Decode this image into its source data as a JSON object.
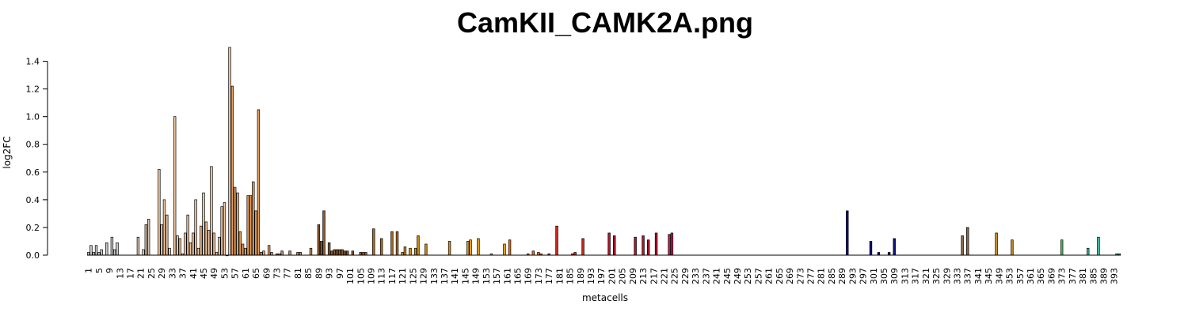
{
  "chart_data": {
    "type": "bar",
    "title": "CamKII_CAMK2A.png",
    "xlabel": "metacells",
    "ylabel": "log2FC",
    "n_bars": 395,
    "ylim": [
      0,
      1.5
    ],
    "y_ticks": [
      "0.0",
      "0.2",
      "0.4",
      "0.6",
      "0.8",
      "1.0",
      "1.2",
      "1.4"
    ],
    "x_tick_labels": [
      "1",
      "5",
      "9",
      "13",
      "17",
      "21",
      "25",
      "29",
      "33",
      "37",
      "41",
      "45",
      "49",
      "53",
      "57",
      "61",
      "65",
      "69",
      "73",
      "77",
      "81",
      "85",
      "89",
      "93",
      "97",
      "101",
      "105",
      "109",
      "113",
      "117",
      "121",
      "125",
      "129",
      "133",
      "137",
      "141",
      "145",
      "149",
      "153",
      "157",
      "161",
      "165",
      "169",
      "173",
      "177",
      "181",
      "185",
      "189",
      "193",
      "197",
      "201",
      "205",
      "209",
      "213",
      "217",
      "221",
      "225",
      "229",
      "233",
      "237",
      "241",
      "245",
      "249",
      "253",
      "257",
      "261",
      "265",
      "269",
      "273",
      "277",
      "281",
      "285",
      "289",
      "293",
      "297",
      "301",
      "305",
      "309",
      "313",
      "317",
      "321",
      "325",
      "329",
      "333",
      "337",
      "341",
      "345",
      "349",
      "353",
      "357",
      "361",
      "365",
      "369",
      "373",
      "377",
      "381",
      "385",
      "389",
      "393"
    ],
    "values": {
      "1": 0.02,
      "2": 0.07,
      "3": 0.02,
      "4": 0.07,
      "5": 0.02,
      "6": 0.04,
      "8": 0.09,
      "10": 0.13,
      "11": 0.04,
      "12": 0.09,
      "20": 0.13,
      "22": 0.04,
      "23": 0.22,
      "24": 0.26,
      "28": 0.62,
      "29": 0.22,
      "30": 0.4,
      "31": 0.29,
      "32": 0.05,
      "34": 1.0,
      "35": 0.14,
      "36": 0.12,
      "37": 0.01,
      "38": 0.16,
      "39": 0.29,
      "40": 0.09,
      "41": 0.16,
      "42": 0.4,
      "43": 0.05,
      "44": 0.21,
      "45": 0.45,
      "46": 0.24,
      "47": 0.18,
      "48": 0.64,
      "49": 0.16,
      "50": 0.02,
      "51": 0.13,
      "52": 0.35,
      "53": 0.38,
      "54": 0.0,
      "55": 1.5,
      "56": 1.22,
      "57": 0.49,
      "58": 0.45,
      "59": 0.17,
      "60": 0.08,
      "61": 0.05,
      "62": 0.43,
      "63": 0.43,
      "64": 0.53,
      "65": 0.32,
      "66": 1.05,
      "67": 0.02,
      "68": 0.03,
      "70": 0.07,
      "71": 0.02,
      "73": 0.01,
      "74": 0.01,
      "75": 0.03,
      "78": 0.03,
      "81": 0.02,
      "82": 0.02,
      "86": 0.05,
      "89": 0.22,
      "90": 0.1,
      "91": 0.32,
      "93": 0.09,
      "94": 0.03,
      "95": 0.04,
      "96": 0.04,
      "97": 0.04,
      "98": 0.04,
      "99": 0.03,
      "100": 0.03,
      "102": 0.03,
      "105": 0.02,
      "106": 0.02,
      "107": 0.02,
      "110": 0.19,
      "113": 0.12,
      "117": 0.17,
      "119": 0.17,
      "121": 0.02,
      "122": 0.06,
      "124": 0.05,
      "126": 0.05,
      "127": 0.14,
      "130": 0.08,
      "139": 0.1,
      "146": 0.1,
      "147": 0.11,
      "150": 0.12,
      "155": 0.01,
      "160": 0.08,
      "162": 0.11,
      "169": 0.01,
      "171": 0.03,
      "173": 0.02,
      "174": 0.01,
      "177": 0.01,
      "180": 0.21,
      "186": 0.01,
      "187": 0.02,
      "190": 0.12,
      "200": 0.16,
      "202": 0.14,
      "210": 0.13,
      "213": 0.14,
      "215": 0.11,
      "218": 0.16,
      "223": 0.15,
      "224": 0.16,
      "291": 0.32,
      "300": 0.1,
      "303": 0.02,
      "307": 0.02,
      "309": 0.12,
      "335": 0.14,
      "337": 0.2,
      "348": 0.16,
      "354": 0.11,
      "373": 0.11,
      "383": 0.05,
      "387": 0.13,
      "394": 0.01,
      "395": 0.01
    },
    "color_bands": [
      [
        1,
        15,
        "#c8c8c8"
      ],
      [
        16,
        24,
        "#d9c2ad"
      ],
      [
        25,
        55,
        "#f3c8a0"
      ],
      [
        56,
        70,
        "#e8a060"
      ],
      [
        71,
        86,
        "#c88a50"
      ],
      [
        87,
        105,
        "#8b5a2b"
      ],
      [
        106,
        120,
        "#b06a20"
      ],
      [
        121,
        140,
        "#d0901c"
      ],
      [
        141,
        160,
        "#e8a020"
      ],
      [
        161,
        175,
        "#e8701c"
      ],
      [
        176,
        195,
        "#d02818"
      ],
      [
        196,
        220,
        "#b8102c"
      ],
      [
        221,
        230,
        "#c8185a"
      ],
      [
        231,
        290,
        "#1a1a9a"
      ],
      [
        291,
        320,
        "#101080"
      ],
      [
        321,
        340,
        "#8a6a50"
      ],
      [
        341,
        360,
        "#c89030"
      ],
      [
        361,
        380,
        "#60b870"
      ],
      [
        381,
        390,
        "#40c0a0"
      ],
      [
        391,
        395,
        "#20b0b0"
      ]
    ]
  }
}
